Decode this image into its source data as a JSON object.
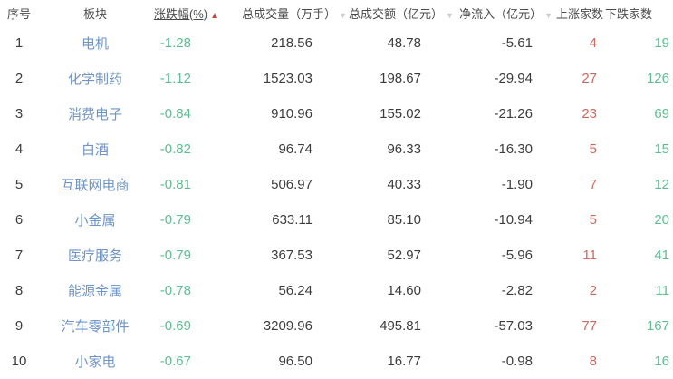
{
  "colors": {
    "link_blue": "#6e94c9",
    "fall_green": "#5fbd92",
    "rise_red": "#cd6a60",
    "sort_active_red": "#bf4742",
    "sort_idle_gray": "#cccccc",
    "text_dark": "#3c3c3c",
    "header_text": "#4a4a4a"
  },
  "icons": {
    "sort_ascending": "▲",
    "sort_idle_down": "▼"
  },
  "table": {
    "columns": [
      {
        "key": "index",
        "label": "序号",
        "sortable": false,
        "sorted": "none"
      },
      {
        "key": "sector",
        "label": "板块",
        "sortable": false,
        "sorted": "none"
      },
      {
        "key": "change",
        "label": "涨跌幅(%)",
        "sortable": true,
        "sorted": "asc"
      },
      {
        "key": "volume",
        "label": "总成交量（万手）",
        "sortable": true,
        "sorted": "none"
      },
      {
        "key": "turnover",
        "label": "总成交额（亿元）",
        "sortable": true,
        "sorted": "none"
      },
      {
        "key": "inflow",
        "label": "净流入（亿元）",
        "sortable": true,
        "sorted": "none"
      },
      {
        "key": "up",
        "label": "上涨家数",
        "sortable": false,
        "sorted": "none"
      },
      {
        "key": "down",
        "label": "下跌家数",
        "sortable": false,
        "sorted": "none"
      }
    ],
    "rows": [
      {
        "index": "1",
        "sector": "电机",
        "change": "-1.28",
        "volume": "218.56",
        "turnover": "48.78",
        "inflow": "-5.61",
        "up": "4",
        "down": "19"
      },
      {
        "index": "2",
        "sector": "化学制药",
        "change": "-1.12",
        "volume": "1523.03",
        "turnover": "198.67",
        "inflow": "-29.94",
        "up": "27",
        "down": "126"
      },
      {
        "index": "3",
        "sector": "消费电子",
        "change": "-0.84",
        "volume": "910.96",
        "turnover": "155.02",
        "inflow": "-21.26",
        "up": "23",
        "down": "69"
      },
      {
        "index": "4",
        "sector": "白酒",
        "change": "-0.82",
        "volume": "96.74",
        "turnover": "96.33",
        "inflow": "-16.30",
        "up": "5",
        "down": "15"
      },
      {
        "index": "5",
        "sector": "互联网电商",
        "change": "-0.81",
        "volume": "506.97",
        "turnover": "40.33",
        "inflow": "-1.90",
        "up": "7",
        "down": "12"
      },
      {
        "index": "6",
        "sector": "小金属",
        "change": "-0.79",
        "volume": "633.11",
        "turnover": "85.10",
        "inflow": "-10.94",
        "up": "5",
        "down": "20"
      },
      {
        "index": "7",
        "sector": "医疗服务",
        "change": "-0.79",
        "volume": "367.53",
        "turnover": "52.97",
        "inflow": "-5.96",
        "up": "11",
        "down": "41"
      },
      {
        "index": "8",
        "sector": "能源金属",
        "change": "-0.78",
        "volume": "56.24",
        "turnover": "14.60",
        "inflow": "-2.82",
        "up": "2",
        "down": "11"
      },
      {
        "index": "9",
        "sector": "汽车零部件",
        "change": "-0.69",
        "volume": "3209.96",
        "turnover": "495.81",
        "inflow": "-57.03",
        "up": "77",
        "down": "167"
      },
      {
        "index": "10",
        "sector": "小家电",
        "change": "-0.67",
        "volume": "96.50",
        "turnover": "16.77",
        "inflow": "-0.98",
        "up": "8",
        "down": "16"
      }
    ]
  }
}
